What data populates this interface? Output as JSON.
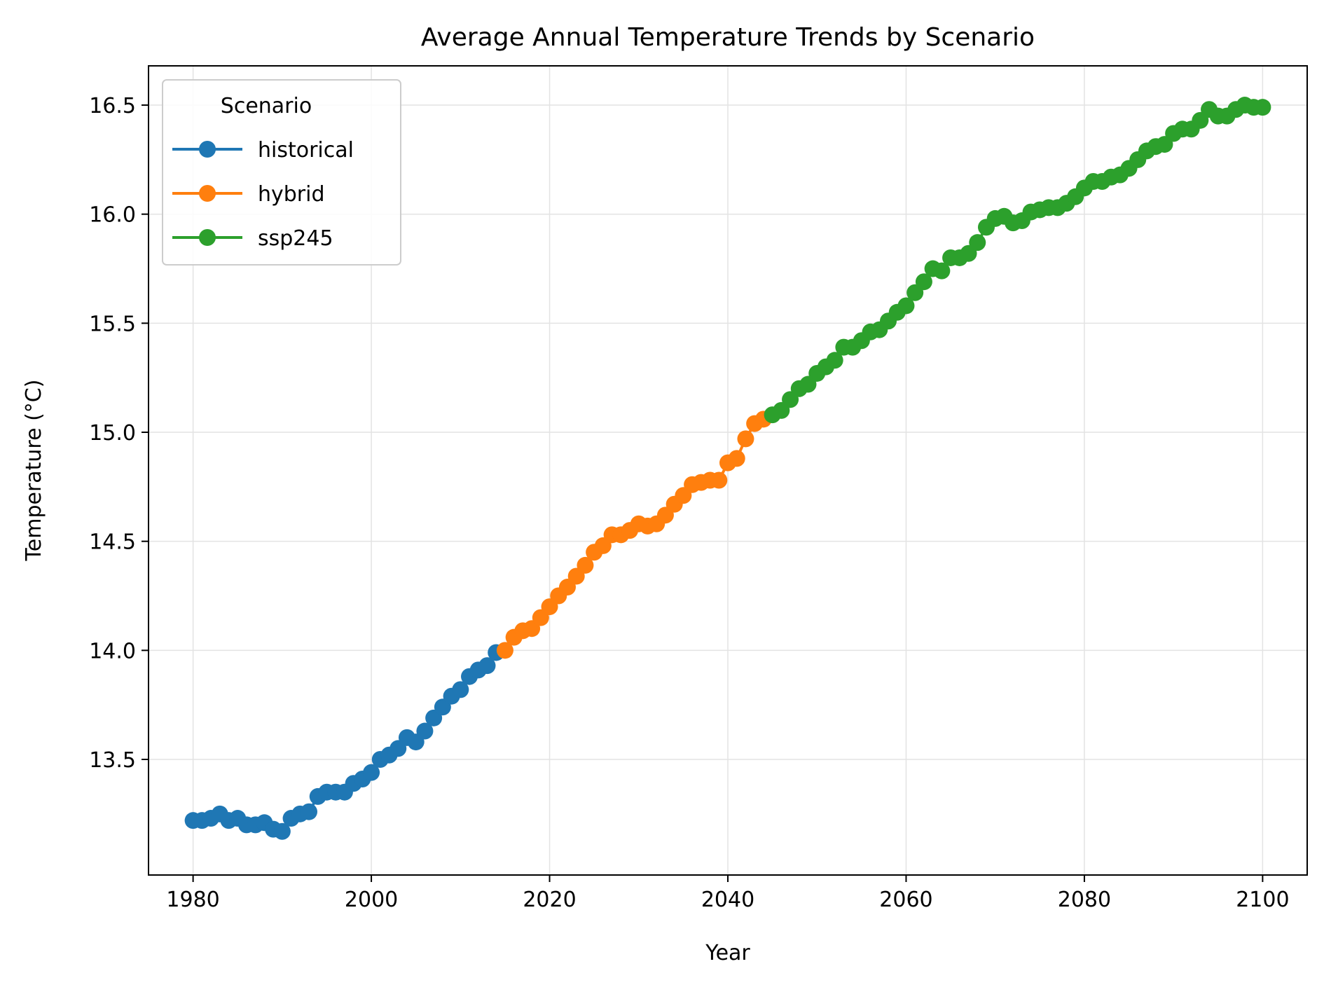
{
  "chart_data": {
    "type": "line",
    "title": "Average Annual Temperature Trends by Scenario",
    "xlabel": "Year",
    "ylabel": "Temperature (°C)",
    "xlim": [
      1975,
      2105
    ],
    "ylim": [
      12.97,
      16.68
    ],
    "xticks": [
      1980,
      2000,
      2020,
      2040,
      2060,
      2080,
      2100
    ],
    "yticks": [
      13.5,
      14.0,
      14.5,
      15.0,
      15.5,
      16.0,
      16.5
    ],
    "xtick_labels": [
      "1980",
      "2000",
      "2020",
      "2040",
      "2060",
      "2080",
      "2100"
    ],
    "ytick_labels": [
      "13.5",
      "14.0",
      "14.5",
      "15.0",
      "15.5",
      "16.0",
      "16.5"
    ],
    "grid": true,
    "legend": {
      "title": "Scenario",
      "position": "top-left"
    },
    "series": [
      {
        "name": "historical",
        "color": "#1f77b4",
        "x": [
          1980,
          1981,
          1982,
          1983,
          1984,
          1985,
          1986,
          1987,
          1988,
          1989,
          1990,
          1991,
          1992,
          1993,
          1994,
          1995,
          1996,
          1997,
          1998,
          1999,
          2000,
          2001,
          2002,
          2003,
          2004,
          2005,
          2006,
          2007,
          2008,
          2009,
          2010,
          2011,
          2012,
          2013,
          2014
        ],
        "y": [
          13.22,
          13.22,
          13.23,
          13.25,
          13.22,
          13.23,
          13.2,
          13.2,
          13.21,
          13.18,
          13.17,
          13.23,
          13.25,
          13.26,
          13.33,
          13.35,
          13.35,
          13.35,
          13.39,
          13.41,
          13.44,
          13.5,
          13.52,
          13.55,
          13.6,
          13.58,
          13.63,
          13.69,
          13.74,
          13.79,
          13.82,
          13.88,
          13.91,
          13.93,
          13.99
        ]
      },
      {
        "name": "hybrid",
        "color": "#ff7f0e",
        "x": [
          2015,
          2016,
          2017,
          2018,
          2019,
          2020,
          2021,
          2022,
          2023,
          2024,
          2025,
          2026,
          2027,
          2028,
          2029,
          2030,
          2031,
          2032,
          2033,
          2034,
          2035,
          2036,
          2037,
          2038,
          2039,
          2040,
          2041,
          2042,
          2043,
          2044
        ],
        "y": [
          14.0,
          14.06,
          14.09,
          14.1,
          14.15,
          14.2,
          14.25,
          14.29,
          14.34,
          14.39,
          14.45,
          14.48,
          14.53,
          14.53,
          14.55,
          14.58,
          14.57,
          14.58,
          14.62,
          14.67,
          14.71,
          14.76,
          14.77,
          14.78,
          14.78,
          14.86,
          14.88,
          14.97,
          15.04,
          15.06
        ]
      },
      {
        "name": "ssp245",
        "color": "#2ca02c",
        "x": [
          2045,
          2046,
          2047,
          2048,
          2049,
          2050,
          2051,
          2052,
          2053,
          2054,
          2055,
          2056,
          2057,
          2058,
          2059,
          2060,
          2061,
          2062,
          2063,
          2064,
          2065,
          2066,
          2067,
          2068,
          2069,
          2070,
          2071,
          2072,
          2073,
          2074,
          2075,
          2076,
          2077,
          2078,
          2079,
          2080,
          2081,
          2082,
          2083,
          2084,
          2085,
          2086,
          2087,
          2088,
          2089,
          2090,
          2091,
          2092,
          2093,
          2094,
          2095,
          2096,
          2097,
          2098,
          2099,
          2100
        ],
        "y": [
          15.08,
          15.1,
          15.15,
          15.2,
          15.22,
          15.27,
          15.3,
          15.33,
          15.39,
          15.39,
          15.42,
          15.46,
          15.47,
          15.51,
          15.55,
          15.58,
          15.64,
          15.69,
          15.75,
          15.74,
          15.8,
          15.8,
          15.82,
          15.87,
          15.94,
          15.98,
          15.99,
          15.96,
          15.97,
          16.01,
          16.02,
          16.03,
          16.03,
          16.05,
          16.08,
          16.12,
          16.15,
          16.15,
          16.17,
          16.18,
          16.21,
          16.25,
          16.29,
          16.31,
          16.32,
          16.37,
          16.39,
          16.39,
          16.43,
          16.48,
          16.45,
          16.45,
          16.48,
          16.5,
          16.49,
          16.49
        ]
      }
    ]
  }
}
